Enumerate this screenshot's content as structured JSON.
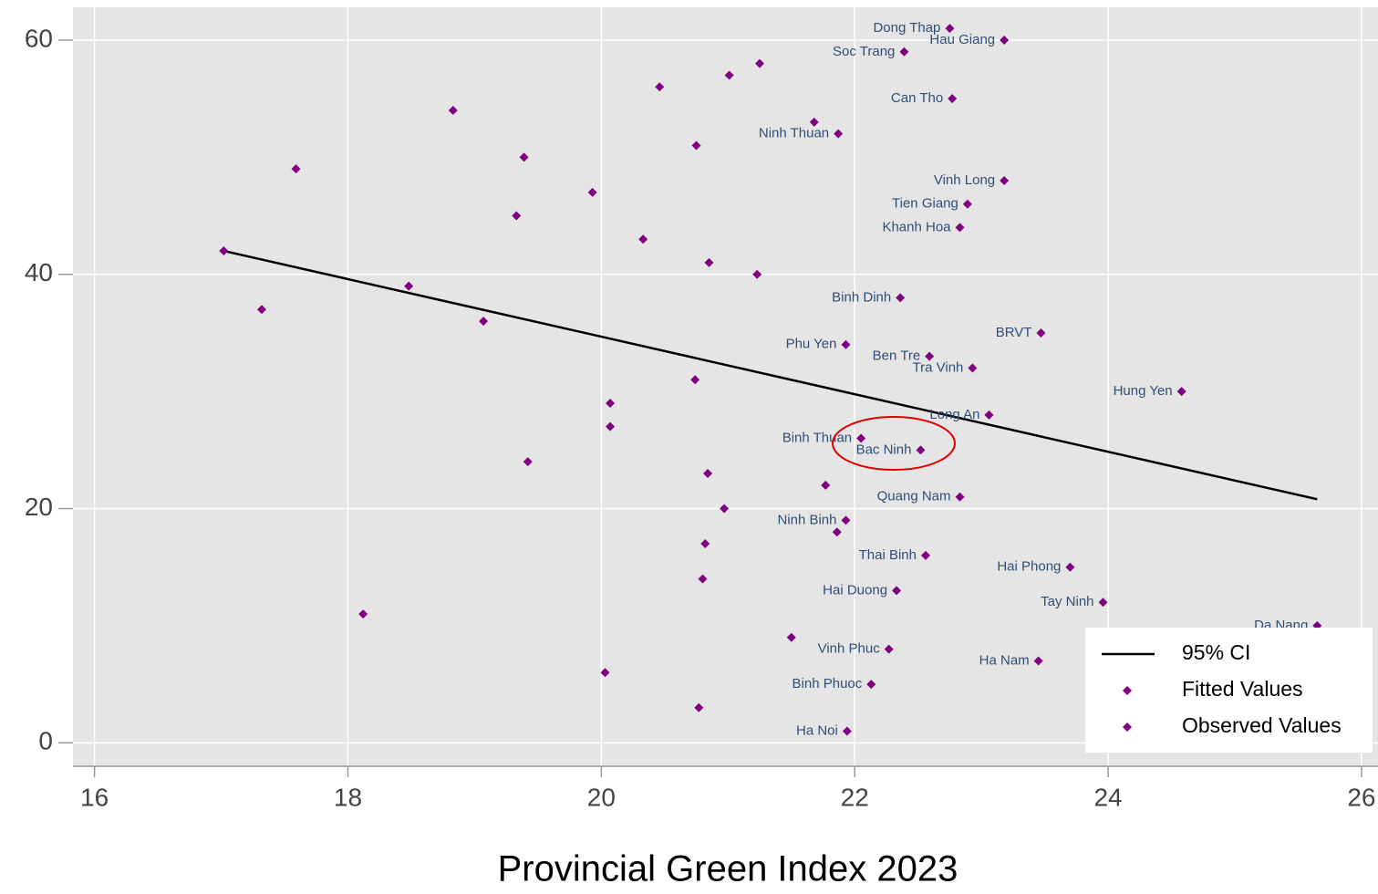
{
  "chart_data": {
    "type": "scatter",
    "xlabel": "Provincial Green Index 2023",
    "xlim": [
      15.83,
      26.13
    ],
    "xticks": [
      16,
      18,
      20,
      22,
      24,
      26
    ],
    "ylim": [
      -2,
      62.8
    ],
    "yticks": [
      0,
      20,
      40,
      60
    ],
    "grid": true,
    "legend": "lower right",
    "series": [
      {
        "name": "95% CI",
        "type": "line",
        "color": "#000000",
        "x": [
          17.02,
          25.65
        ],
        "values": [
          42,
          20.8
        ]
      },
      {
        "name": "Fitted Values",
        "type": "scatter",
        "color": "#800080",
        "x": [],
        "values": []
      },
      {
        "name": "Observed Values",
        "type": "scatter",
        "color": "#800080",
        "x": [
          22.75,
          23.18,
          22.39,
          22.77,
          21.87,
          23.18,
          22.89,
          22.83,
          22.36,
          23.47,
          21.93,
          22.59,
          22.93,
          24.58,
          23.06,
          22.05,
          22.52,
          22.83,
          21.93,
          22.56,
          23.7,
          22.33,
          23.96,
          25.65,
          22.27,
          23.45,
          22.13,
          21.94,
          17.02,
          17.59,
          17.32,
          18.83,
          18.48,
          19.07,
          19.39,
          19.33,
          19.42,
          18.12,
          20.46,
          21.01,
          21.25,
          21.68,
          20.75,
          19.93,
          20.33,
          20.85,
          21.23,
          20.74,
          20.07,
          20.07,
          20.84,
          21.77,
          20.97,
          21.86,
          20.82,
          20.8,
          21.5,
          20.03,
          20.77
        ],
        "values": [
          61,
          60,
          59,
          55,
          52,
          48,
          46,
          44,
          38,
          35,
          34,
          33,
          32,
          30,
          28,
          26,
          25,
          21,
          19,
          16,
          15,
          13,
          12,
          10,
          8,
          7,
          5,
          1,
          42,
          49,
          37,
          54,
          39,
          36,
          50,
          45,
          24,
          11,
          56,
          57,
          58,
          53,
          51,
          47,
          43,
          41,
          40,
          31,
          29,
          27,
          23,
          22,
          20,
          18,
          17,
          14,
          9,
          6,
          3
        ],
        "labels": [
          "Dong Thap",
          "Hau Giang",
          "Soc Trang",
          "Can Tho",
          "Ninh Thuan",
          "Vinh Long",
          "Tien Giang",
          "Khanh Hoa",
          "Binh Dinh",
          "BRVT",
          "Phu Yen",
          "Ben Tre",
          "Tra Vinh",
          "Hung Yen",
          "Long An",
          "Binh Thuan",
          "Bac Ninh",
          "Quang Nam",
          "Ninh Binh",
          "Thai Binh",
          "Hai Phong",
          "Hai Duong",
          "Tay Ninh",
          "Da Nang",
          "Vinh Phuc",
          "Ha Nam",
          "Binh Phuoc",
          "Ha Noi",
          null,
          null,
          null,
          null,
          null,
          null,
          null,
          null,
          null,
          null,
          null,
          null,
          null,
          null,
          null,
          null,
          null,
          null,
          null,
          null,
          null,
          null,
          null,
          null,
          null,
          null,
          null,
          null,
          null,
          null,
          null
        ]
      }
    ]
  }
}
